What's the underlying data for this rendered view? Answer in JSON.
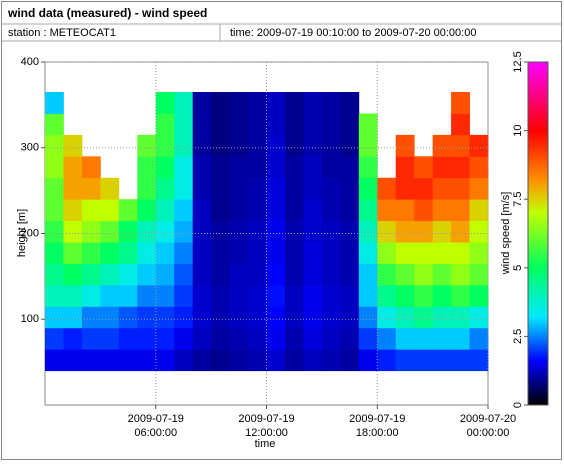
{
  "header": {
    "title": "wind data (measured) - wind speed",
    "station": "station : METEOCAT1",
    "time": "time: 2009-07-19 00:10:00 to 2009-07-20 00:00:00"
  },
  "chart_data": {
    "type": "heatmap",
    "xlabel": "time",
    "ylabel": "height [m]",
    "zlabel": "wind speed [m/s]",
    "xlim": [
      "2009-07-19 00:00:00",
      "2009-07-20 00:00:00"
    ],
    "xticks": [
      {
        "value": "2009-07-19 06:00:00",
        "label": [
          "2009-07-19",
          "06:00:00"
        ]
      },
      {
        "value": "2009-07-19 12:00:00",
        "label": [
          "2009-07-19",
          "12:00:00"
        ]
      },
      {
        "value": "2009-07-19 18:00:00",
        "label": [
          "2009-07-19",
          "18:00:00"
        ]
      },
      {
        "value": "2009-07-20 00:00:00",
        "label": [
          "2009-07-20",
          "00:00:00"
        ]
      }
    ],
    "ylim": [
      0,
      400
    ],
    "yticks": [
      100,
      200,
      300,
      400
    ],
    "grid": true,
    "zlim": [
      0,
      12.5
    ],
    "zticks": [
      0,
      2.5,
      5,
      7.5,
      10,
      12.5
    ],
    "colorscale": [
      {
        "value": 0,
        "color": "#000000"
      },
      {
        "value": 0.8,
        "color": "#000080"
      },
      {
        "value": 1.6,
        "color": "#0000ff"
      },
      {
        "value": 3.2,
        "color": "#00e8ff"
      },
      {
        "value": 5,
        "color": "#00ff60"
      },
      {
        "value": 7,
        "color": "#c0ff00"
      },
      {
        "value": 8.2,
        "color": "#ff9000"
      },
      {
        "value": 10,
        "color": "#ff0000"
      },
      {
        "value": 12.5,
        "color": "#ff00ff"
      }
    ],
    "x_edges": [
      "2009-07-19 00:00:00",
      "2009-07-19 01:00:00",
      "2009-07-19 02:00:00",
      "2009-07-19 03:00:00",
      "2009-07-19 04:00:00",
      "2009-07-19 05:00:00",
      "2009-07-19 06:00:00",
      "2009-07-19 07:00:00",
      "2009-07-19 08:00:00",
      "2009-07-19 09:00:00",
      "2009-07-19 10:00:00",
      "2009-07-19 11:00:00",
      "2009-07-19 12:00:00",
      "2009-07-19 13:00:00",
      "2009-07-19 14:00:00",
      "2009-07-19 15:00:00",
      "2009-07-19 16:00:00",
      "2009-07-19 17:00:00",
      "2009-07-19 18:00:00",
      "2009-07-19 19:00:00",
      "2009-07-19 20:00:00",
      "2009-07-19 21:00:00",
      "2009-07-19 22:00:00",
      "2009-07-19 23:00:00",
      "2009-07-20 00:00:00"
    ],
    "y_edges": [
      40,
      65,
      90,
      115,
      140,
      165,
      190,
      215,
      240,
      265,
      290,
      315,
      340,
      365
    ],
    "z": [
      [
        1.5,
        1.5,
        1.5,
        1.5,
        1.5,
        1.5,
        1.5,
        1.2,
        1,
        0.9,
        1,
        1.1,
        1.3,
        1,
        1.2,
        1.1,
        1,
        1.5,
        1.8,
        2,
        2,
        2,
        2,
        2
      ],
      [
        2,
        1.8,
        2,
        2,
        1.8,
        1.8,
        1.8,
        1.5,
        1.2,
        1,
        1.1,
        1.2,
        1.5,
        1.1,
        1.4,
        1.2,
        1.1,
        2,
        2.5,
        3,
        3,
        3,
        3,
        2.5
      ],
      [
        3,
        3,
        2.5,
        2.5,
        2.2,
        2,
        2,
        1.8,
        1.3,
        1.1,
        1.2,
        1.3,
        1.6,
        1.2,
        1.5,
        1.3,
        1.2,
        2.5,
        3.5,
        4,
        4.5,
        4,
        4,
        3.5
      ],
      [
        4,
        4,
        3.5,
        3,
        3,
        2.5,
        2.5,
        2,
        1.3,
        1.1,
        1.2,
        1.3,
        1.7,
        1.2,
        1.5,
        1.3,
        1.2,
        3,
        4.5,
        5,
        5.5,
        5,
        5.5,
        5
      ],
      [
        4.5,
        5,
        4.5,
        4,
        3.5,
        3,
        2.8,
        2.2,
        1.2,
        1,
        1.2,
        1.2,
        1.6,
        1.1,
        1.4,
        1.2,
        1.1,
        3,
        5.5,
        6,
        6.5,
        6,
        6.5,
        6
      ],
      [
        5,
        6,
        5.5,
        5,
        4.5,
        3.5,
        3,
        2.5,
        1.2,
        1,
        1.1,
        1.2,
        1.5,
        1.1,
        1.4,
        1.2,
        1.1,
        3.5,
        6.5,
        7,
        7,
        7,
        7,
        6.5
      ],
      [
        5.5,
        7,
        6.5,
        6,
        5,
        4,
        3.5,
        2.8,
        1.2,
        1,
        1.1,
        1.2,
        1.5,
        1.1,
        1.3,
        1.2,
        1.1,
        4,
        7.5,
        8,
        8,
        7.5,
        8,
        7
      ],
      [
        6,
        7.5,
        7,
        7,
        6,
        5,
        4,
        3,
        1.2,
        0.9,
        1,
        1.1,
        1.4,
        1,
        1.3,
        1.1,
        1,
        4.5,
        8.5,
        8.5,
        9,
        8.5,
        8.5,
        7.5
      ],
      [
        6,
        8,
        8,
        7.5,
        null,
        5.5,
        4.5,
        3.5,
        1.1,
        0.9,
        1,
        1.1,
        1.4,
        1,
        1.2,
        1.1,
        1,
        5,
        9,
        9.5,
        9.5,
        9,
        9,
        8.5
      ],
      [
        6.5,
        8,
        8.5,
        null,
        null,
        5.5,
        5,
        3.5,
        1.1,
        0.9,
        1,
        1,
        1.3,
        1,
        1.2,
        1,
        1,
        5.5,
        null,
        9.5,
        9,
        9.5,
        9.5,
        9
      ],
      [
        6.5,
        7.5,
        null,
        null,
        null,
        6,
        5.5,
        4,
        1,
        0.8,
        0.9,
        1,
        1.3,
        0.9,
        1.1,
        1,
        0.9,
        6,
        null,
        9,
        null,
        9,
        9,
        9.5
      ],
      [
        6,
        null,
        null,
        null,
        null,
        null,
        5.5,
        4,
        1,
        0.8,
        0.9,
        1,
        1.2,
        0.9,
        1.1,
        1,
        0.9,
        6,
        null,
        null,
        null,
        null,
        9.5,
        null
      ],
      [
        3,
        null,
        null,
        null,
        null,
        null,
        5,
        4,
        1,
        0.8,
        0.9,
        1,
        1.2,
        0.9,
        1.1,
        1,
        0.9,
        null,
        null,
        null,
        null,
        null,
        9,
        null
      ]
    ]
  }
}
